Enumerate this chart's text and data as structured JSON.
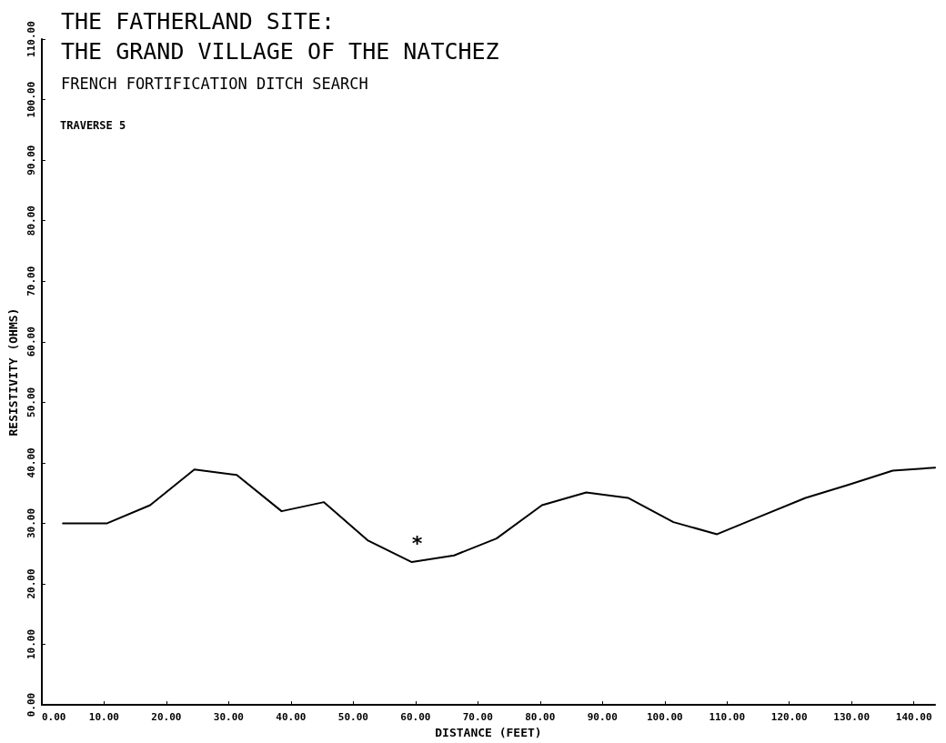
{
  "chart_data": {
    "type": "line",
    "title": "THE FATHERLAND SITE:\nTHE GRAND VILLAGE OF THE NATCHEZ",
    "subtitle": "FRENCH FORTIFICATION DITCH SEARCH",
    "xlabel": "DISTANCE (FEET)",
    "ylabel": "RESISTIVITY (OHMS)",
    "annotations": [
      "TRAVERSE 5",
      "*"
    ],
    "x": [
      3.4,
      10.5,
      17.4,
      24.5,
      31.3,
      38.5,
      45.3,
      52.3,
      59.4,
      66.2,
      73,
      80.3,
      87.4,
      94.1,
      101.4,
      108.4,
      115.5,
      122.6,
      129.3,
      136.6,
      143.4
    ],
    "series": [
      {
        "color": "#000000",
        "values": [
          30,
          30,
          33,
          38.9,
          38,
          32,
          33.5,
          27.2,
          23.6,
          24.7,
          27.5,
          33,
          35.1,
          34.2,
          30.2,
          28.2,
          31.2,
          34.2,
          36.3,
          38.7,
          39.2
        ]
      }
    ],
    "xlim": [
      0,
      143.4
    ],
    "ylim": [
      0,
      110
    ],
    "xticks": [
      {
        "value": 0,
        "label": "0.00"
      },
      {
        "value": 10,
        "label": "10.00"
      },
      {
        "value": 20,
        "label": "20.00"
      },
      {
        "value": 30,
        "label": "30.00"
      },
      {
        "value": 40,
        "label": "40.00"
      },
      {
        "value": 50,
        "label": "50.00"
      },
      {
        "value": 60,
        "label": "60.00"
      },
      {
        "value": 70,
        "label": "70.00"
      },
      {
        "value": 80,
        "label": "80.00"
      },
      {
        "value": 90,
        "label": "90.00"
      },
      {
        "value": 100,
        "label": "100.00"
      },
      {
        "value": 110,
        "label": "110.00"
      },
      {
        "value": 120,
        "label": "120.00"
      },
      {
        "value": 130,
        "label": "130.00"
      },
      {
        "value": 140,
        "label": "140.00"
      }
    ],
    "yticks": [
      {
        "value": 0,
        "label": "0.00"
      },
      {
        "value": 10,
        "label": "10.00"
      },
      {
        "value": 20,
        "label": "20.00"
      },
      {
        "value": 30,
        "label": "30.00"
      },
      {
        "value": 40,
        "label": "40.00"
      },
      {
        "value": 50,
        "label": "50.00"
      },
      {
        "value": 60,
        "label": "60.00"
      },
      {
        "value": 70,
        "label": "70.00"
      },
      {
        "value": 80,
        "label": "80.00"
      },
      {
        "value": 90,
        "label": "90.00"
      },
      {
        "value": 100,
        "label": "100.00"
      },
      {
        "value": 110,
        "label": "110.00"
      }
    ],
    "grid": false,
    "marker": "none",
    "line_style": "solid"
  }
}
